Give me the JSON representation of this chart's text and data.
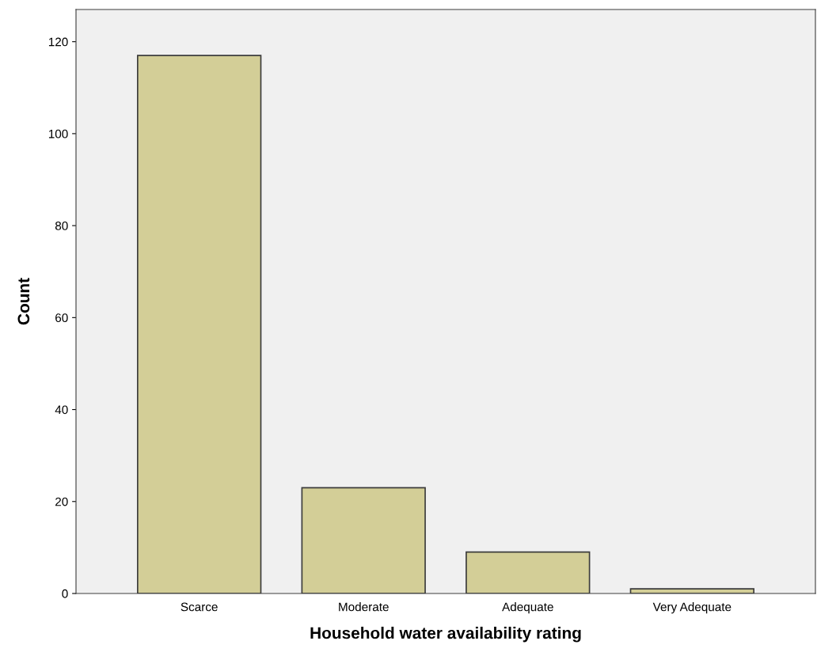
{
  "chart_data": {
    "type": "bar",
    "xlabel": "Household water availability rating",
    "ylabel": "Count",
    "categories": [
      "Scarce",
      "Moderate",
      "Adequate",
      "Very Adequate"
    ],
    "values": [
      117,
      23,
      9,
      1
    ],
    "color": "#d3ce97",
    "ylim": [
      0,
      127
    ],
    "yticks": [
      0,
      20,
      40,
      60,
      80,
      100,
      120
    ],
    "grid": false,
    "legend": false
  }
}
